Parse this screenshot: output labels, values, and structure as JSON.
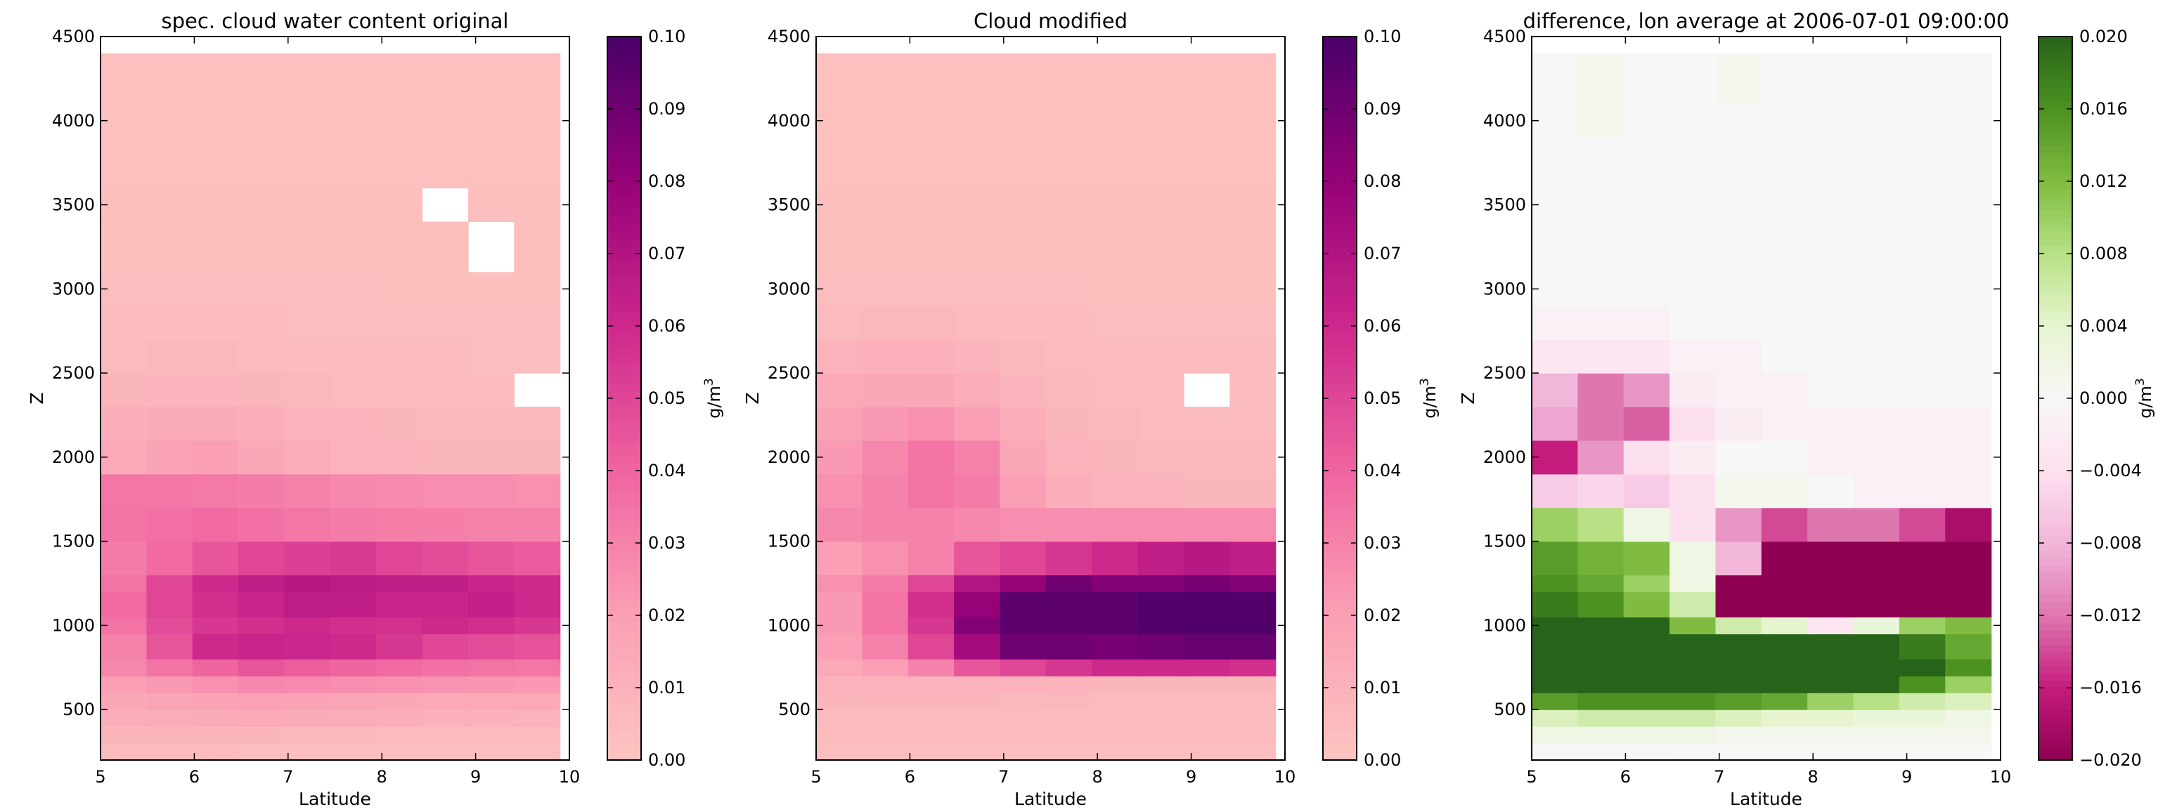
{
  "chart_data": [
    {
      "type": "heatmap",
      "title": "spec. cloud water content original",
      "xlabel": "Latitude",
      "ylabel": "Z",
      "xlim": [
        5,
        10
      ],
      "ylim": [
        200,
        4500
      ],
      "xticks": [
        "5",
        "6",
        "7",
        "8",
        "9",
        "10"
      ],
      "yticks": [
        "500",
        "1000",
        "1500",
        "2000",
        "2500",
        "3000",
        "3500",
        "4000",
        "4500"
      ],
      "colorbar": {
        "label": "g/m3",
        "colormap": "RdPu",
        "range": [
          0.0,
          0.1
        ],
        "ticks": [
          "0.00",
          "0.01",
          "0.02",
          "0.03",
          "0.04",
          "0.05",
          "0.06",
          "0.07",
          "0.08",
          "0.09",
          "0.10"
        ]
      },
      "z_levels": [
        250,
        350,
        450,
        550,
        650,
        750,
        875,
        1000,
        1125,
        1250,
        1400,
        1600,
        1800,
        2000,
        2200,
        2400,
        2600,
        2800,
        3000,
        3250,
        3500,
        3750,
        4000,
        4250
      ],
      "lat_bins": [
        "5.0-5.5",
        "5.5-6.0",
        "6.0-6.5",
        "6.5-7.0",
        "7.0-7.5",
        "7.5-8.0",
        "8.0-8.5",
        "8.5-9.0",
        "9.0-9.5",
        "9.5-10.0"
      ],
      "values": [
        [
          0.005,
          0.005,
          0.005,
          0.004,
          0.004,
          0.004,
          0.004,
          0.004,
          0.004,
          0.004
        ],
        [
          0.008,
          0.008,
          0.008,
          0.008,
          0.007,
          0.007,
          0.006,
          0.006,
          0.006,
          0.006
        ],
        [
          0.012,
          0.013,
          0.014,
          0.015,
          0.014,
          0.013,
          0.012,
          0.011,
          0.011,
          0.01
        ],
        [
          0.016,
          0.017,
          0.018,
          0.019,
          0.018,
          0.017,
          0.016,
          0.015,
          0.015,
          0.015
        ],
        [
          0.02,
          0.022,
          0.025,
          0.028,
          0.027,
          0.026,
          0.025,
          0.024,
          0.023,
          0.022
        ],
        [
          0.028,
          0.035,
          0.04,
          0.045,
          0.042,
          0.04,
          0.038,
          0.036,
          0.035,
          0.034
        ],
        [
          0.03,
          0.045,
          0.06,
          0.062,
          0.061,
          0.06,
          0.055,
          0.05,
          0.048,
          0.046
        ],
        [
          0.035,
          0.048,
          0.055,
          0.058,
          0.06,
          0.058,
          0.057,
          0.06,
          0.058,
          0.055
        ],
        [
          0.038,
          0.05,
          0.058,
          0.062,
          0.066,
          0.065,
          0.062,
          0.062,
          0.064,
          0.06
        ],
        [
          0.035,
          0.05,
          0.06,
          0.065,
          0.068,
          0.067,
          0.065,
          0.065,
          0.062,
          0.06
        ],
        [
          0.032,
          0.038,
          0.045,
          0.05,
          0.052,
          0.054,
          0.05,
          0.048,
          0.045,
          0.043
        ],
        [
          0.035,
          0.036,
          0.038,
          0.036,
          0.034,
          0.032,
          0.031,
          0.031,
          0.03,
          0.03
        ],
        [
          0.034,
          0.034,
          0.033,
          0.032,
          0.03,
          0.028,
          0.027,
          0.026,
          0.026,
          0.025
        ],
        [
          0.015,
          0.018,
          0.02,
          0.016,
          0.012,
          0.01,
          0.009,
          0.008,
          0.008,
          0.008
        ],
        [
          0.012,
          0.014,
          0.014,
          0.012,
          0.01,
          0.009,
          0.008,
          0.007,
          0.007,
          0.007
        ],
        [
          0.008,
          0.009,
          0.009,
          0.008,
          0.007,
          0.006,
          0.006,
          0.005,
          0.005,
          null
        ],
        [
          0.006,
          0.007,
          0.007,
          0.006,
          0.005,
          0.005,
          0.005,
          0.005,
          0.004,
          0.004
        ],
        [
          0.005,
          0.005,
          0.005,
          0.005,
          0.004,
          0.004,
          0.004,
          0.004,
          0.004,
          0.004
        ],
        [
          0.004,
          0.004,
          0.004,
          0.004,
          0.004,
          0.004,
          0.003,
          0.003,
          0.003,
          0.003
        ],
        [
          0.003,
          0.003,
          0.003,
          0.003,
          0.003,
          0.003,
          0.003,
          0.003,
          null,
          0.003
        ],
        [
          0.003,
          0.003,
          0.003,
          0.003,
          0.003,
          0.003,
          0.003,
          null,
          0.003,
          0.003
        ],
        [
          0.002,
          0.002,
          0.002,
          0.002,
          0.002,
          0.002,
          0.002,
          0.002,
          0.002,
          0.002
        ],
        [
          0.002,
          0.002,
          0.002,
          0.002,
          0.002,
          0.002,
          0.002,
          0.002,
          0.002,
          0.002
        ],
        [
          0.002,
          0.002,
          0.002,
          0.002,
          0.002,
          0.002,
          0.002,
          0.002,
          0.002,
          0.002
        ]
      ]
    },
    {
      "type": "heatmap",
      "title": "Cloud modified",
      "xlabel": "Latitude",
      "ylabel": "Z",
      "xlim": [
        5,
        10
      ],
      "ylim": [
        200,
        4500
      ],
      "xticks": [
        "5",
        "6",
        "7",
        "8",
        "9",
        "10"
      ],
      "yticks": [
        "500",
        "1000",
        "1500",
        "2000",
        "2500",
        "3000",
        "3500",
        "4000",
        "4500"
      ],
      "colorbar": {
        "label": "g/m3",
        "colormap": "RdPu",
        "range": [
          0.0,
          0.1
        ],
        "ticks": [
          "0.00",
          "0.01",
          "0.02",
          "0.03",
          "0.04",
          "0.05",
          "0.06",
          "0.07",
          "0.08",
          "0.09",
          "0.10"
        ]
      },
      "z_levels": [
        250,
        350,
        450,
        550,
        650,
        750,
        875,
        1000,
        1125,
        1250,
        1400,
        1600,
        1800,
        2000,
        2200,
        2400,
        2600,
        2800,
        3000,
        3250,
        3500,
        3750,
        4000,
        4250
      ],
      "lat_bins": [
        "5.0-5.5",
        "5.5-6.0",
        "6.0-6.5",
        "6.5-7.0",
        "7.0-7.5",
        "7.5-8.0",
        "8.0-8.5",
        "8.5-9.0",
        "9.0-9.5",
        "9.5-10.0"
      ],
      "values": [
        [
          0.004,
          0.004,
          0.004,
          0.004,
          0.004,
          0.004,
          0.004,
          0.004,
          0.004,
          0.004
        ],
        [
          0.005,
          0.005,
          0.005,
          0.005,
          0.005,
          0.005,
          0.005,
          0.005,
          0.005,
          0.005
        ],
        [
          0.006,
          0.006,
          0.006,
          0.006,
          0.006,
          0.005,
          0.005,
          0.005,
          0.005,
          0.005
        ],
        [
          0.008,
          0.008,
          0.008,
          0.008,
          0.007,
          0.007,
          0.006,
          0.006,
          0.006,
          0.006
        ],
        [
          0.01,
          0.01,
          0.01,
          0.01,
          0.01,
          0.009,
          0.008,
          0.008,
          0.008,
          0.008
        ],
        [
          0.015,
          0.02,
          0.03,
          0.045,
          0.05,
          0.055,
          0.06,
          0.06,
          0.06,
          0.058
        ],
        [
          0.02,
          0.03,
          0.05,
          0.075,
          0.09,
          0.09,
          0.088,
          0.09,
          0.092,
          0.092
        ],
        [
          0.022,
          0.035,
          0.055,
          0.085,
          0.095,
          0.095,
          0.095,
          0.098,
          0.098,
          0.098
        ],
        [
          0.022,
          0.035,
          0.058,
          0.08,
          0.095,
          0.095,
          0.095,
          0.098,
          0.098,
          0.098
        ],
        [
          0.025,
          0.032,
          0.05,
          0.07,
          0.08,
          0.09,
          0.085,
          0.085,
          0.088,
          0.085
        ],
        [
          0.02,
          0.025,
          0.03,
          0.045,
          0.05,
          0.055,
          0.06,
          0.065,
          0.068,
          0.065
        ],
        [
          0.028,
          0.03,
          0.03,
          0.028,
          0.026,
          0.026,
          0.026,
          0.026,
          0.026,
          0.026
        ],
        [
          0.025,
          0.03,
          0.035,
          0.032,
          0.02,
          0.012,
          0.01,
          0.009,
          0.008,
          0.008
        ],
        [
          0.022,
          0.028,
          0.035,
          0.03,
          0.016,
          0.01,
          0.008,
          0.007,
          0.007,
          0.007
        ],
        [
          0.018,
          0.022,
          0.025,
          0.02,
          0.012,
          0.008,
          0.007,
          0.006,
          0.006,
          0.006
        ],
        [
          0.015,
          0.016,
          0.016,
          0.013,
          0.009,
          0.007,
          0.006,
          0.005,
          null,
          0.005
        ],
        [
          0.01,
          0.011,
          0.011,
          0.009,
          0.007,
          0.006,
          0.005,
          0.005,
          0.005,
          0.005
        ],
        [
          0.006,
          0.007,
          0.007,
          0.006,
          0.005,
          0.005,
          0.004,
          0.004,
          0.004,
          0.004
        ],
        [
          0.004,
          0.004,
          0.004,
          0.004,
          0.004,
          0.004,
          0.003,
          0.003,
          0.003,
          0.003
        ],
        [
          0.003,
          0.003,
          0.003,
          0.003,
          0.003,
          0.003,
          0.003,
          0.003,
          0.003,
          0.003
        ],
        [
          0.003,
          0.003,
          0.003,
          0.003,
          0.003,
          0.003,
          0.003,
          0.003,
          0.003,
          0.003
        ],
        [
          0.002,
          0.002,
          0.002,
          0.002,
          0.002,
          0.002,
          0.002,
          0.002,
          0.002,
          0.002
        ],
        [
          0.002,
          0.002,
          0.002,
          0.002,
          0.002,
          0.002,
          0.002,
          0.002,
          0.002,
          0.002
        ],
        [
          0.002,
          0.002,
          0.002,
          0.002,
          0.002,
          0.002,
          0.002,
          0.002,
          0.002,
          0.002
        ]
      ]
    },
    {
      "type": "heatmap",
      "title": "difference, lon average at 2006-07-01 09:00:00",
      "xlabel": "Latitude",
      "ylabel": "Z",
      "xlim": [
        5,
        10
      ],
      "ylim": [
        200,
        4500
      ],
      "xticks": [
        "5",
        "6",
        "7",
        "8",
        "9",
        "10"
      ],
      "yticks": [
        "500",
        "1000",
        "1500",
        "2000",
        "2500",
        "3000",
        "3500",
        "4000",
        "4500"
      ],
      "colorbar": {
        "label": "g/m3",
        "colormap": "PiYG",
        "range": [
          -0.02,
          0.02
        ],
        "ticks": [
          "−0.020",
          "−0.016",
          "−0.012",
          "−0.008",
          "−0.004",
          "0.000",
          "0.004",
          "0.008",
          "0.012",
          "0.016",
          "0.020"
        ]
      },
      "z_levels": [
        250,
        350,
        450,
        550,
        650,
        750,
        875,
        1000,
        1125,
        1250,
        1400,
        1600,
        1800,
        2000,
        2200,
        2400,
        2600,
        2800,
        3000,
        3250,
        3500,
        3750,
        4000,
        4250
      ],
      "lat_bins": [
        "5.0-5.5",
        "5.5-6.0",
        "6.0-6.5",
        "6.5-7.0",
        "7.0-7.5",
        "7.5-8.0",
        "8.0-8.5",
        "8.5-9.0",
        "9.0-9.5",
        "9.5-10.0"
      ],
      "values": [
        [
          0.0002,
          0.0002,
          0.0002,
          0.0001,
          0.0001,
          0.0001,
          0.0001,
          0.0001,
          0.0001,
          0.0001
        ],
        [
          0.002,
          0.002,
          0.002,
          0.002,
          0.001,
          0.001,
          0.001,
          0.001,
          0.001,
          0.001
        ],
        [
          0.005,
          0.006,
          0.006,
          0.006,
          0.005,
          0.004,
          0.004,
          0.003,
          0.003,
          0.002
        ],
        [
          0.015,
          0.016,
          0.016,
          0.016,
          0.015,
          0.014,
          0.01,
          0.008,
          0.006,
          0.005
        ],
        [
          0.022,
          0.022,
          0.022,
          0.022,
          0.022,
          0.022,
          0.022,
          0.022,
          0.016,
          0.01
        ],
        [
          0.022,
          0.022,
          0.022,
          0.022,
          0.022,
          0.022,
          0.022,
          0.022,
          0.022,
          0.016
        ],
        [
          0.022,
          0.022,
          0.022,
          0.022,
          0.022,
          0.022,
          0.022,
          0.022,
          0.018,
          0.014
        ],
        [
          0.022,
          0.022,
          0.022,
          0.012,
          0.006,
          0.004,
          -0.003,
          0.003,
          0.01,
          0.012
        ],
        [
          0.018,
          0.016,
          0.012,
          0.006,
          -0.022,
          -0.022,
          -0.022,
          -0.022,
          -0.022,
          -0.022
        ],
        [
          0.016,
          0.014,
          0.01,
          0.002,
          -0.022,
          -0.022,
          -0.022,
          -0.022,
          -0.022,
          -0.022
        ],
        [
          0.015,
          0.013,
          0.012,
          0.002,
          -0.008,
          -0.022,
          -0.022,
          -0.022,
          -0.022,
          -0.022
        ],
        [
          0.01,
          0.008,
          0.002,
          -0.004,
          -0.01,
          -0.014,
          -0.012,
          -0.012,
          -0.014,
          -0.018
        ],
        [
          -0.006,
          -0.005,
          -0.006,
          -0.004,
          0.001,
          0.001,
          0.0,
          -0.001,
          -0.001,
          -0.001
        ],
        [
          -0.016,
          -0.01,
          -0.004,
          -0.002,
          0.0,
          0.0,
          -0.001,
          -0.001,
          -0.001,
          -0.001
        ],
        [
          -0.009,
          -0.012,
          -0.013,
          -0.004,
          -0.002,
          -0.001,
          -0.001,
          -0.001,
          -0.001,
          -0.001
        ],
        [
          -0.008,
          -0.012,
          -0.01,
          -0.002,
          -0.001,
          -0.001,
          0.0,
          0.0,
          0.0,
          0.0
        ],
        [
          -0.003,
          -0.003,
          -0.003,
          -0.001,
          -0.001,
          0.0,
          0.0,
          0.0,
          0.0,
          0.0
        ],
        [
          -0.001,
          -0.001,
          -0.001,
          0.0,
          0.0,
          0.0,
          0.0,
          0.0,
          0.0,
          0.0
        ],
        [
          0.0,
          0.0,
          0.0,
          0.0,
          0.0,
          0.0,
          0.0,
          0.0,
          0.0,
          0.0
        ],
        [
          0.0,
          0.0,
          0.0,
          0.0,
          0.0,
          0.0,
          0.0,
          0.0,
          0.0,
          0.0
        ],
        [
          0.0,
          0.0,
          0.0,
          0.0,
          0.0,
          0.0,
          0.0,
          0.0,
          0.0,
          0.0
        ],
        [
          0.0,
          0.0,
          0.0,
          0.0,
          0.0,
          0.0,
          0.0,
          0.0,
          0.0,
          0.0
        ],
        [
          0.0,
          0.001,
          0.0,
          0.0,
          0.0,
          0.0,
          0.0,
          0.0,
          0.0,
          0.0
        ],
        [
          0.0,
          0.001,
          0.0,
          0.0,
          0.001,
          0.0,
          0.0,
          0.0,
          0.0,
          0.0
        ]
      ]
    }
  ]
}
